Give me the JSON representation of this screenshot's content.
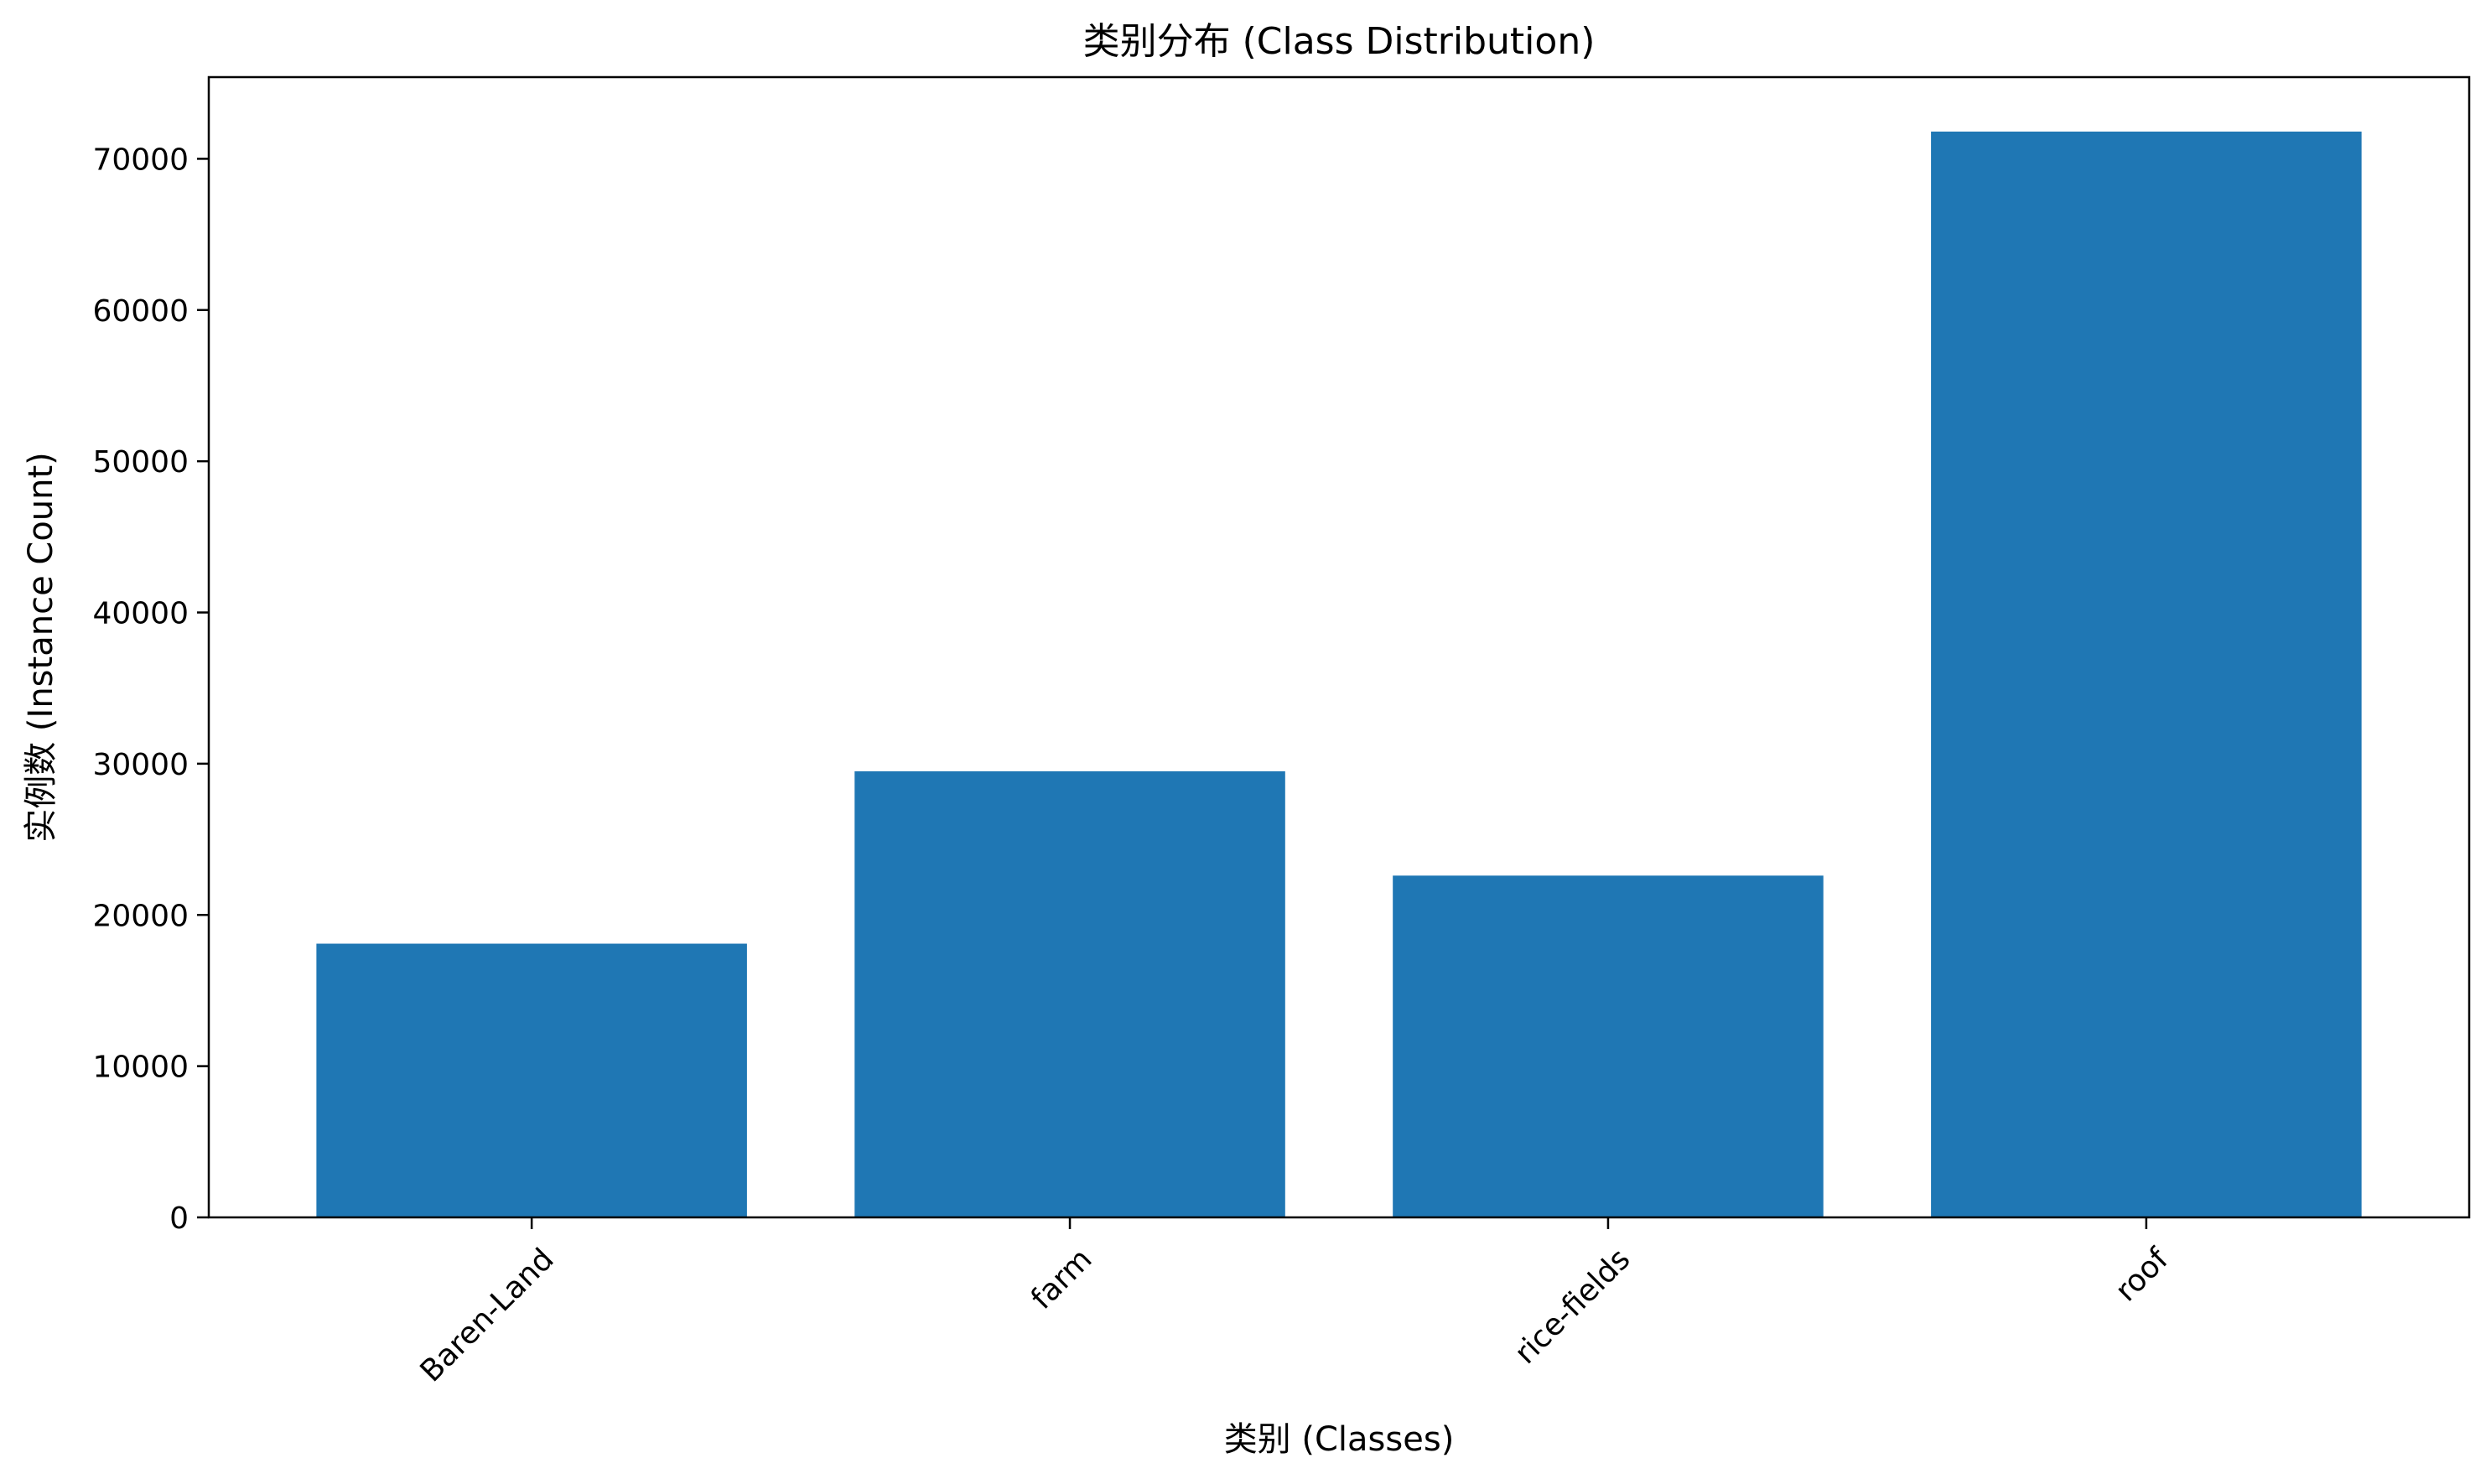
{
  "chart_data": {
    "type": "bar",
    "title": "类别分布 (Class Distribution)",
    "xlabel": "类别 (Classes)",
    "ylabel": "实例数 (Instance Count)",
    "categories": [
      "Baren-Land",
      "farm",
      "rice-fields",
      "roof"
    ],
    "values": [
      18100,
      29500,
      22600,
      71800
    ],
    "ylim": [
      0,
      75400
    ],
    "yticks": [
      0,
      10000,
      20000,
      30000,
      40000,
      50000,
      60000,
      70000
    ],
    "ytick_labels": [
      "0",
      "10000",
      "20000",
      "30000",
      "40000",
      "50000",
      "60000",
      "70000"
    ],
    "x_tick_rotation": -45,
    "bar_color": "#1f77b4",
    "grid": false,
    "legend": false
  }
}
